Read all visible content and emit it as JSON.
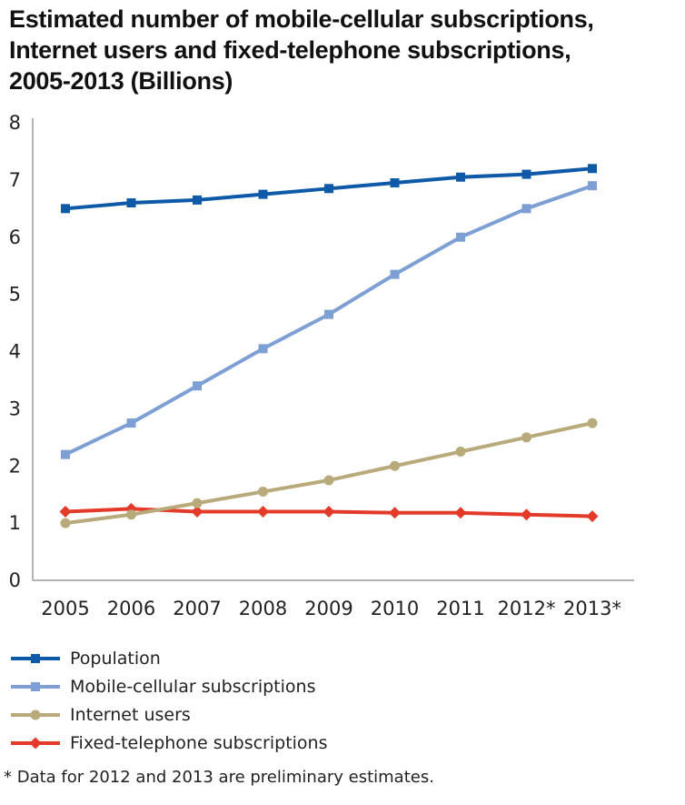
{
  "chart_title": {
    "line1": "Estimated number of mobile-cellular subscriptions,",
    "line2": "Internet users and fixed-telephone subscriptions,",
    "line3": "2005-2013 (Billions)"
  },
  "footnote": "* Data for 2012 and 2013 are preliminary estimates.",
  "chart_data": {
    "type": "line",
    "title": "Estimated number of mobile-cellular subscriptions, Internet users and fixed-telephone subscriptions, 2005-2013 (Billions)",
    "xlabel": "",
    "ylabel": "",
    "categories": [
      "2005",
      "2006",
      "2007",
      "2008",
      "2009",
      "2010",
      "2011",
      "2012*",
      "2013*"
    ],
    "ylim": [
      0,
      8
    ],
    "yticks": [
      "0",
      "1",
      "2",
      "3",
      "4",
      "5",
      "6",
      "7",
      "8"
    ],
    "grid": false,
    "legend_position": "bottom",
    "series": [
      {
        "name": "Population",
        "color": "#0f5aa8",
        "marker": "square",
        "values": [
          6.5,
          6.6,
          6.65,
          6.75,
          6.85,
          6.95,
          7.05,
          7.1,
          7.2
        ]
      },
      {
        "name": "Mobile-cellular subscriptions",
        "color": "#7d9fd3",
        "marker": "square",
        "values": [
          2.2,
          2.75,
          3.4,
          4.05,
          4.65,
          5.35,
          6.0,
          6.5,
          6.9
        ]
      },
      {
        "name": "Internet users",
        "color": "#b8aa7a",
        "marker": "circle",
        "values": [
          1.0,
          1.15,
          1.35,
          1.55,
          1.75,
          2.0,
          2.25,
          2.5,
          2.75
        ]
      },
      {
        "name": "Fixed-telephone subscriptions",
        "color": "#e43a2a",
        "marker": "diamond",
        "values": [
          1.2,
          1.25,
          1.2,
          1.2,
          1.2,
          1.18,
          1.18,
          1.15,
          1.12
        ]
      }
    ]
  }
}
